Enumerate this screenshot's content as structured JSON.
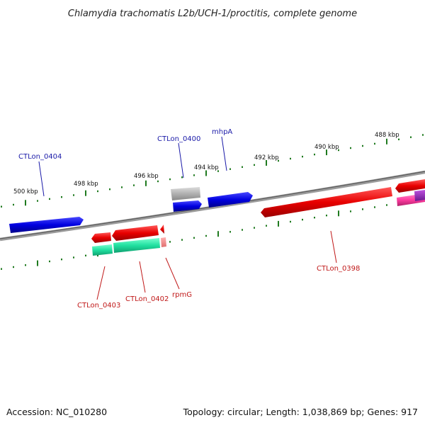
{
  "title": "Chlamydia trachomatis L2b/UCH-1/proctitis, complete genome",
  "footer": {
    "accession": "Accession: NC_010280",
    "summary": "Topology: circular; Length: 1,038,869 bp; Genes: 917"
  },
  "scale_labels": [
    "500 kbp",
    "498 kbp",
    "496 kbp",
    "494 kbp",
    "492 kbp",
    "490 kbp",
    "488 kbp"
  ],
  "gene_labels": {
    "CTLon_0404": "CTLon_0404",
    "CTLon_0400": "CTLon_0400",
    "mhpA": "mhpA",
    "CTLon_0403": "CTLon_0403",
    "CTLon_0402": "CTLon_0402",
    "rpmG": "rpmG",
    "CTLon_0398": "CTLon_0398"
  },
  "colors": {
    "backbone": "#808080",
    "forward_cds": "#0000e0",
    "reverse_cds": "#e80000",
    "rna": "#20e0a0",
    "pseudo": "#b0b0b0",
    "pink": "#ff3ca0",
    "ticks": "#1f7a1f"
  }
}
